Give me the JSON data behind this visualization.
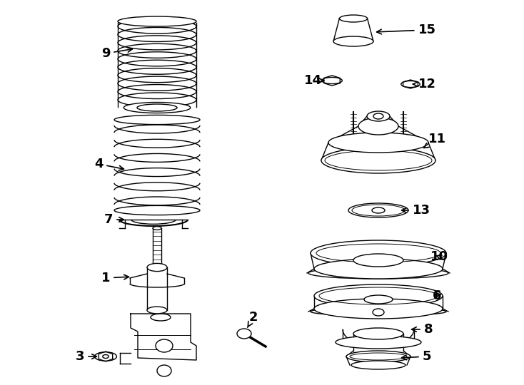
{
  "bg_color": "#ffffff",
  "line_color": "#000000",
  "fig_width": 7.34,
  "fig_height": 5.4,
  "dpi": 100
}
